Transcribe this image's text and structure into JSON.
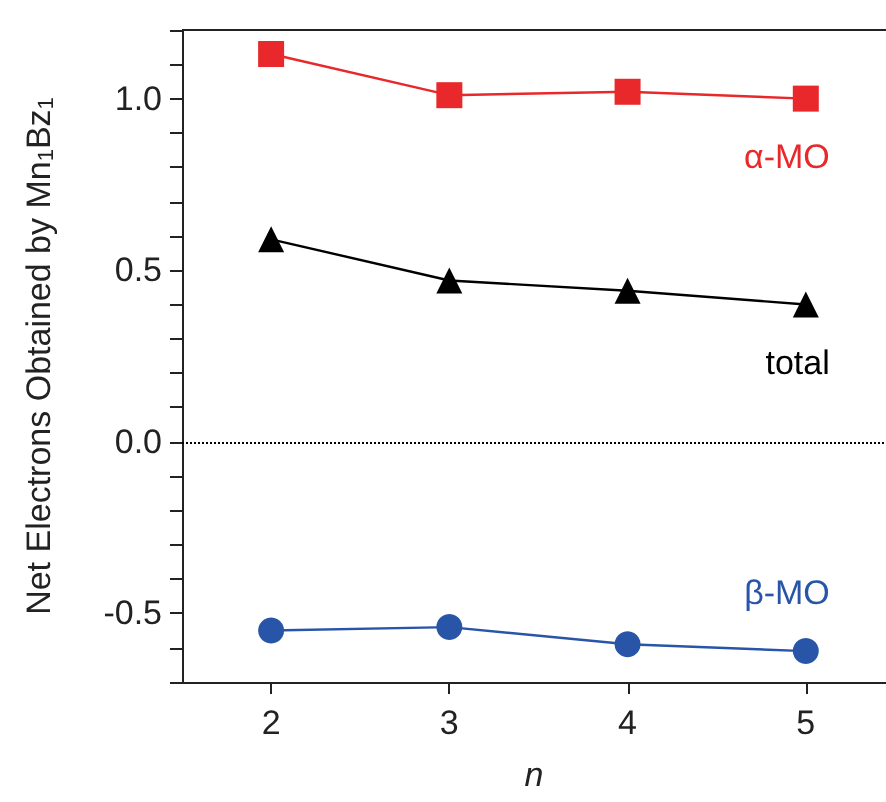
{
  "chart_data": {
    "type": "line",
    "xlabel": "n",
    "ylabel": "Net Electrons Obtained by Mn$_{1}$Bz$_{1}$",
    "x": [
      2,
      3,
      4,
      5
    ],
    "series": [
      {
        "name": "α-MO",
        "color": "#e8282b",
        "marker": "square",
        "values": [
          1.13,
          1.01,
          1.02,
          1.0
        ]
      },
      {
        "name": "total",
        "color": "#000000",
        "marker": "triangle",
        "values": [
          0.59,
          0.47,
          0.44,
          0.4
        ]
      },
      {
        "name": "β-MO",
        "color": "#2855a8",
        "marker": "circle",
        "values": [
          -0.55,
          -0.54,
          -0.59,
          -0.61
        ]
      }
    ],
    "xlim": [
      1.5,
      5.45
    ],
    "xticks": [
      2,
      3,
      4,
      5
    ],
    "ylim": [
      -0.7,
      1.2
    ],
    "yticks": [
      {
        "value": -0.7,
        "label": null
      },
      {
        "value": -0.6,
        "label": null
      },
      {
        "value": -0.5,
        "label": "-0.5"
      },
      {
        "value": -0.4,
        "label": null
      },
      {
        "value": -0.3,
        "label": null
      },
      {
        "value": -0.2,
        "label": null
      },
      {
        "value": -0.1,
        "label": null
      },
      {
        "value": 0,
        "label": "0.0"
      },
      {
        "value": 0.1,
        "label": null
      },
      {
        "value": 0.2,
        "label": null
      },
      {
        "value": 0.3,
        "label": null
      },
      {
        "value": 0.4,
        "label": null
      },
      {
        "value": 0.5,
        "label": "0.5"
      },
      {
        "value": 0.6,
        "label": null
      },
      {
        "value": 0.7,
        "label": null
      },
      {
        "value": 0.8,
        "label": null
      },
      {
        "value": 0.9,
        "label": null
      },
      {
        "value": 1.0,
        "label": "1.0"
      },
      {
        "value": 1.1,
        "label": null
      },
      {
        "value": 1.2,
        "label": null
      }
    ],
    "ref_lines": [
      {
        "axis": "y",
        "value": 0,
        "color": "#000000",
        "line_style": "dotted"
      }
    ],
    "grid": false,
    "legend": false
  }
}
